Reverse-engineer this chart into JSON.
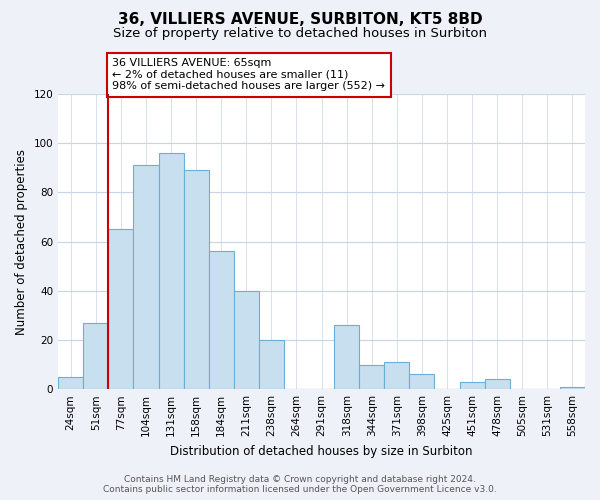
{
  "title": "36, VILLIERS AVENUE, SURBITON, KT5 8BD",
  "subtitle": "Size of property relative to detached houses in Surbiton",
  "xlabel": "Distribution of detached houses by size in Surbiton",
  "ylabel": "Number of detached properties",
  "categories": [
    "24sqm",
    "51sqm",
    "77sqm",
    "104sqm",
    "131sqm",
    "158sqm",
    "184sqm",
    "211sqm",
    "238sqm",
    "264sqm",
    "291sqm",
    "318sqm",
    "344sqm",
    "371sqm",
    "398sqm",
    "425sqm",
    "451sqm",
    "478sqm",
    "505sqm",
    "531sqm",
    "558sqm"
  ],
  "values": [
    5,
    27,
    65,
    91,
    96,
    89,
    56,
    40,
    20,
    0,
    0,
    26,
    10,
    11,
    6,
    0,
    3,
    4,
    0,
    0,
    1
  ],
  "bar_color": "#c8dff0",
  "bar_edge_color": "#6aafd6",
  "vline_color": "#cc0000",
  "vline_bar_index": 2,
  "annotation_text": "36 VILLIERS AVENUE: 65sqm\n← 2% of detached houses are smaller (11)\n98% of semi-detached houses are larger (552) →",
  "annotation_box_facecolor": "#ffffff",
  "annotation_box_edgecolor": "#cc0000",
  "ylim": [
    0,
    120
  ],
  "yticks": [
    0,
    20,
    40,
    60,
    80,
    100,
    120
  ],
  "footer_line1": "Contains HM Land Registry data © Crown copyright and database right 2024.",
  "footer_line2": "Contains public sector information licensed under the Open Government Licence v3.0.",
  "background_color": "#eef2f8",
  "plot_background": "#ffffff",
  "grid_color": "#c8d4e8",
  "title_fontsize": 11,
  "subtitle_fontsize": 9.5,
  "axis_label_fontsize": 8.5,
  "tick_fontsize": 7.5,
  "footer_fontsize": 6.5,
  "annotation_fontsize": 8
}
